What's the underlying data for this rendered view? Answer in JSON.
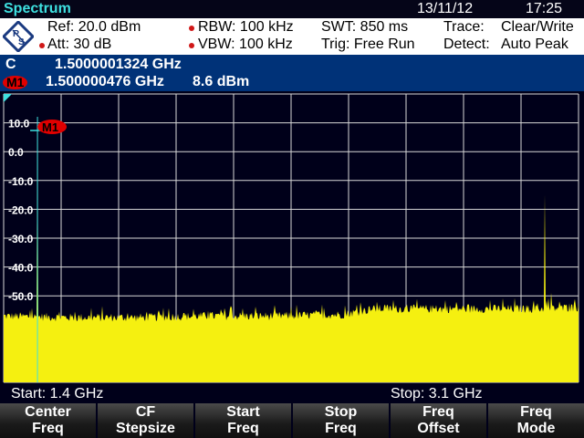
{
  "title": "Spectrum",
  "date": "13/11/12",
  "time": "17:25",
  "settings": {
    "ref": "Ref:  20.0 dBm",
    "att": "Att:  30 dB",
    "rbw": "RBW:   100 kHz",
    "vbw": "VBW:   100 kHz",
    "swt": "SWT:   850 ms",
    "trig": "Trig:   Free Run",
    "trace": "Trace:",
    "trace_val": "Clear/Write",
    "detect": "Detect:",
    "detect_val": "Auto Peak"
  },
  "center": {
    "label": "C",
    "value": "1.5000001324  GHz"
  },
  "marker": {
    "label": "M1",
    "freq": "1.500000476  GHz",
    "level": "8.6  dBm"
  },
  "footer": {
    "start": "Start:   1.4 GHz",
    "stop": "Stop: 3.1 GHz"
  },
  "softkeys": [
    [
      "Center",
      "Freq"
    ],
    [
      "CF",
      "Stepsize"
    ],
    [
      "Start",
      "Freq"
    ],
    [
      "Stop",
      "Freq"
    ],
    [
      "Freq",
      "Offset"
    ],
    [
      "Freq",
      "Mode"
    ]
  ],
  "colors": {
    "trace": "#f5f010",
    "marker": "#e00000",
    "header_blue": "#003278",
    "title": "#3ee0e0"
  },
  "chart_data": {
    "type": "area",
    "xlim": [
      1.4,
      3.1
    ],
    "xunit": "GHz",
    "ylim": [
      -80,
      20
    ],
    "yunit": "dBm",
    "yticks": [
      "10.0",
      "0.0",
      "-10.0",
      "-20.0",
      "-30.0",
      "-40.0",
      "-50.0"
    ],
    "grid": true,
    "noise_floor": {
      "x": [
        1.4,
        1.6,
        1.8,
        2.0,
        2.2,
        2.4,
        2.45,
        2.5,
        2.6,
        2.8,
        3.0,
        3.1
      ],
      "y": [
        -57,
        -57.5,
        -57.5,
        -57,
        -57,
        -56.5,
        -55.5,
        -54.5,
        -54.5,
        -54.5,
        -54.5,
        -54
      ]
    },
    "peaks": [
      {
        "x": 1.5,
        "y": 8.6
      },
      {
        "x": 3.0,
        "y": -15
      },
      {
        "x": 3.02,
        "y": -49
      }
    ],
    "marker": {
      "name": "M1",
      "x": 1.500000476,
      "y": 8.6
    }
  }
}
